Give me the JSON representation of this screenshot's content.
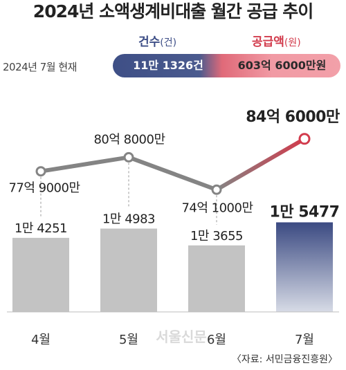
{
  "title": "2024년 소액생계비대출 월간 공급 추이",
  "legend": {
    "count_label": "건수",
    "count_unit": "(건)",
    "amount_label": "공급액",
    "amount_unit": "(원)"
  },
  "as_of": "2024년 7월 현재",
  "totals": {
    "count": "11만 1326건",
    "amount": "603억 6000만원"
  },
  "source": "〈자료: 서민금융진흥원〉",
  "watermark": "서울신문",
  "colors": {
    "bar": "#c3c3c3",
    "bar_highlight": "#3e4f86",
    "line": "#848484",
    "line_highlight": "#d23b4c"
  },
  "chart_data": {
    "type": "bar",
    "categories": [
      "4월",
      "5월",
      "6월",
      "7월"
    ],
    "series": [
      {
        "name": "건수",
        "unit": "건",
        "values": [
          14251,
          14983,
          13655,
          15477
        ],
        "labels": [
          "1만 4251",
          "1만 4983",
          "1만 3655",
          "1만 5477"
        ]
      },
      {
        "name": "공급액",
        "type": "line",
        "unit": "원",
        "values": [
          7790000000,
          8080000000,
          7410000000,
          8460000000
        ],
        "labels": [
          "77억 9000만",
          "80억 8000만",
          "74억 1000만",
          "84억 6000만"
        ]
      }
    ],
    "highlight_index": 3,
    "grid": false
  }
}
